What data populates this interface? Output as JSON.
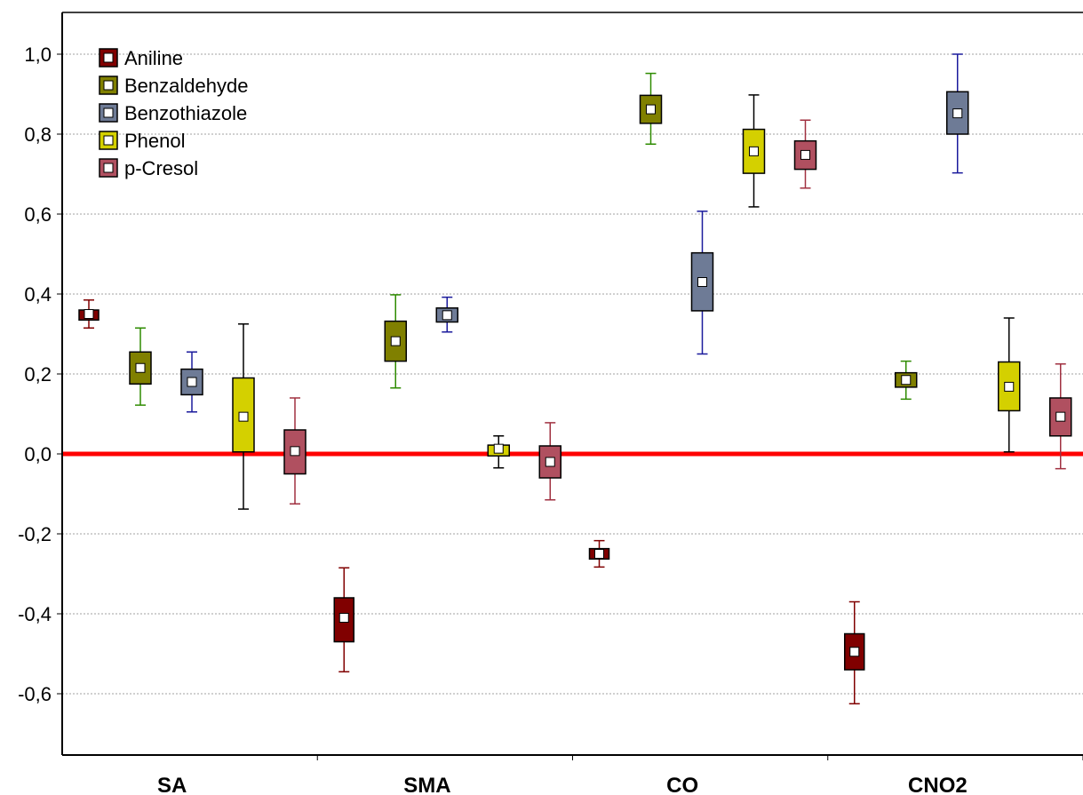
{
  "colors": {
    "frame": "#000000",
    "grid": "#a0a0a0",
    "zero_line": "#ff0000",
    "Aniline": "#800000",
    "Benzaldehyde": "#808000",
    "Benzothiazole": "#6e7b96",
    "Phenol": "#d4d000",
    "p-Cresol": "#b05060",
    "whisker_Aniline": "#800000",
    "whisker_Benzaldehyde": "#2e8b00",
    "whisker_Benzothiazole": "#1a1a9c",
    "whisker_Phenol": "#000000",
    "whisker_p-Cresol": "#a03040"
  },
  "chart_data": {
    "type": "box",
    "categories": [
      "SA",
      "SMA",
      "CO",
      "CNO2"
    ],
    "ylim": [
      -0.75,
      1.1
    ],
    "yticks": [
      1.0,
      0.8,
      0.6,
      0.4,
      0.2,
      0.0,
      -0.2,
      -0.4,
      -0.6
    ],
    "ytick_labels": [
      "1,0",
      "0,8",
      "0,6",
      "0,4",
      "0,2",
      "0,0",
      "-0,2",
      "-0,4",
      "-0,6"
    ],
    "grid": true,
    "reference_line": 0.0,
    "legend_position": "top-left",
    "series": [
      {
        "name": "Aniline",
        "mean": [
          0.35,
          -0.41,
          -0.25,
          -0.495
        ],
        "box_low": [
          0.335,
          -0.47,
          -0.263,
          -0.54
        ],
        "box_high": [
          0.36,
          -0.36,
          -0.237,
          -0.45
        ],
        "whisker_low": [
          0.315,
          -0.545,
          -0.283,
          -0.625
        ],
        "whisker_high": [
          0.385,
          -0.285,
          -0.217,
          -0.37
        ]
      },
      {
        "name": "Benzaldehyde",
        "mean": [
          0.215,
          0.282,
          0.862,
          0.185
        ],
        "box_low": [
          0.175,
          0.232,
          0.827,
          0.167
        ],
        "box_high": [
          0.255,
          0.332,
          0.897,
          0.203
        ],
        "whisker_low": [
          0.122,
          0.165,
          0.775,
          0.137
        ],
        "whisker_high": [
          0.315,
          0.398,
          0.952,
          0.232
        ]
      },
      {
        "name": "Benzothiazole",
        "mean": [
          0.18,
          0.347,
          0.43,
          0.852
        ],
        "box_low": [
          0.148,
          0.33,
          0.358,
          0.8
        ],
        "box_high": [
          0.212,
          0.365,
          0.503,
          0.906
        ],
        "whisker_low": [
          0.105,
          0.305,
          0.25,
          0.703
        ],
        "whisker_high": [
          0.255,
          0.392,
          0.607,
          1.0
        ]
      },
      {
        "name": "Phenol",
        "mean": [
          0.093,
          0.013,
          0.757,
          0.168
        ],
        "box_low": [
          0.005,
          -0.005,
          0.702,
          0.108
        ],
        "box_high": [
          0.19,
          0.022,
          0.812,
          0.23
        ],
        "whisker_low": [
          -0.138,
          -0.035,
          0.618,
          0.005
        ],
        "whisker_high": [
          0.325,
          0.045,
          0.898,
          0.34
        ]
      },
      {
        "name": "p-Cresol",
        "mean": [
          0.007,
          -0.02,
          0.748,
          0.093
        ],
        "box_low": [
          -0.05,
          -0.06,
          0.712,
          0.045
        ],
        "box_high": [
          0.06,
          0.02,
          0.783,
          0.14
        ],
        "whisker_low": [
          -0.125,
          -0.115,
          0.665,
          -0.037
        ],
        "whisker_high": [
          0.14,
          0.078,
          0.835,
          0.225
        ]
      }
    ]
  }
}
